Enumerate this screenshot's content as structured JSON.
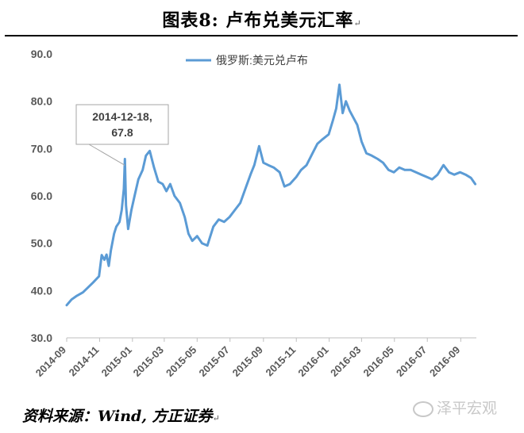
{
  "title": "图表8:  卢布兑美元汇率",
  "title_mark": "↵",
  "source": "资料来源：Wind, 方正证券",
  "source_mark": "↵",
  "watermark": "泽平宏观",
  "watermark_icon": "wechat-icon",
  "colors": {
    "series": "#5b9bd5",
    "axis_text": "#595959",
    "axis_line": "#bfbfbf",
    "callout_border": "#a6a6a6"
  },
  "chart_data": {
    "type": "line",
    "legend_position": "top-center",
    "grid": false,
    "ylim": [
      30,
      90
    ],
    "yticks": [
      "30.0",
      "40.0",
      "50.0",
      "60.0",
      "70.0",
      "80.0",
      "90.0"
    ],
    "xlim": [
      "2014-09-01",
      "2016-09-30"
    ],
    "xticks": [
      "2014-09",
      "2014-11",
      "2015-01",
      "2015-03",
      "2015-05",
      "2015-07",
      "2015-09",
      "2015-11",
      "2016-01",
      "2016-03",
      "2016-05",
      "2016-07",
      "2016-09"
    ],
    "annotation": {
      "line1": "2014-12-18,",
      "line2": "67.8",
      "date": "2014-12-18",
      "value": 67.8
    },
    "series": [
      {
        "name": "俄罗斯:美元兑卢布",
        "x": [
          "2014-09-01",
          "2014-09-10",
          "2014-09-20",
          "2014-10-01",
          "2014-10-10",
          "2014-10-20",
          "2014-10-31",
          "2014-11-05",
          "2014-11-10",
          "2014-11-14",
          "2014-11-18",
          "2014-11-22",
          "2014-11-28",
          "2014-12-02",
          "2014-12-08",
          "2014-12-12",
          "2014-12-16",
          "2014-12-18",
          "2014-12-20",
          "2014-12-24",
          "2014-12-30",
          "2015-01-05",
          "2015-01-12",
          "2015-01-20",
          "2015-01-26",
          "2015-02-02",
          "2015-02-10",
          "2015-02-18",
          "2015-02-26",
          "2015-03-05",
          "2015-03-12",
          "2015-03-20",
          "2015-03-30",
          "2015-04-08",
          "2015-04-15",
          "2015-04-22",
          "2015-05-01",
          "2015-05-10",
          "2015-05-20",
          "2015-05-31",
          "2015-06-10",
          "2015-06-20",
          "2015-06-30",
          "2015-07-10",
          "2015-07-20",
          "2015-07-31",
          "2015-08-08",
          "2015-08-15",
          "2015-08-24",
          "2015-09-01",
          "2015-09-10",
          "2015-09-20",
          "2015-10-01",
          "2015-10-10",
          "2015-10-20",
          "2015-11-01",
          "2015-11-10",
          "2015-11-20",
          "2015-12-01",
          "2015-12-10",
          "2015-12-20",
          "2015-12-31",
          "2016-01-08",
          "2016-01-14",
          "2016-01-20",
          "2016-01-26",
          "2016-02-01",
          "2016-02-08",
          "2016-02-15",
          "2016-02-22",
          "2016-03-01",
          "2016-03-10",
          "2016-03-20",
          "2016-03-31",
          "2016-04-10",
          "2016-04-20",
          "2016-04-30",
          "2016-05-10",
          "2016-05-20",
          "2016-05-31",
          "2016-06-10",
          "2016-06-20",
          "2016-06-30",
          "2016-07-10",
          "2016-07-20",
          "2016-07-31",
          "2016-08-10",
          "2016-08-20",
          "2016-08-31",
          "2016-09-10",
          "2016-09-20",
          "2016-09-28"
        ],
        "values": [
          36.9,
          38.1,
          38.9,
          39.6,
          40.6,
          41.7,
          43.0,
          47.5,
          46.5,
          47.6,
          45.2,
          48.5,
          52.0,
          53.5,
          54.5,
          57.0,
          61.5,
          67.8,
          58.0,
          53.0,
          57.0,
          60.0,
          63.5,
          65.5,
          68.5,
          69.5,
          66.0,
          63.0,
          62.5,
          61.0,
          62.5,
          60.0,
          58.5,
          55.5,
          52.0,
          50.5,
          51.5,
          50.0,
          49.5,
          53.5,
          55.0,
          54.5,
          55.5,
          57.0,
          58.5,
          62.0,
          64.5,
          66.5,
          70.5,
          67.0,
          66.5,
          66.0,
          65.0,
          62.0,
          62.5,
          64.0,
          65.5,
          66.5,
          69.0,
          71.0,
          72.0,
          73.0,
          76.0,
          78.5,
          83.5,
          77.5,
          80.0,
          78.0,
          76.5,
          75.0,
          71.5,
          69.0,
          68.5,
          67.8,
          67.0,
          65.5,
          65.0,
          66.0,
          65.5,
          65.5,
          65.0,
          64.5,
          64.0,
          63.5,
          64.5,
          66.5,
          65.0,
          64.5,
          65.0,
          64.5,
          63.8,
          62.5
        ]
      }
    ]
  }
}
